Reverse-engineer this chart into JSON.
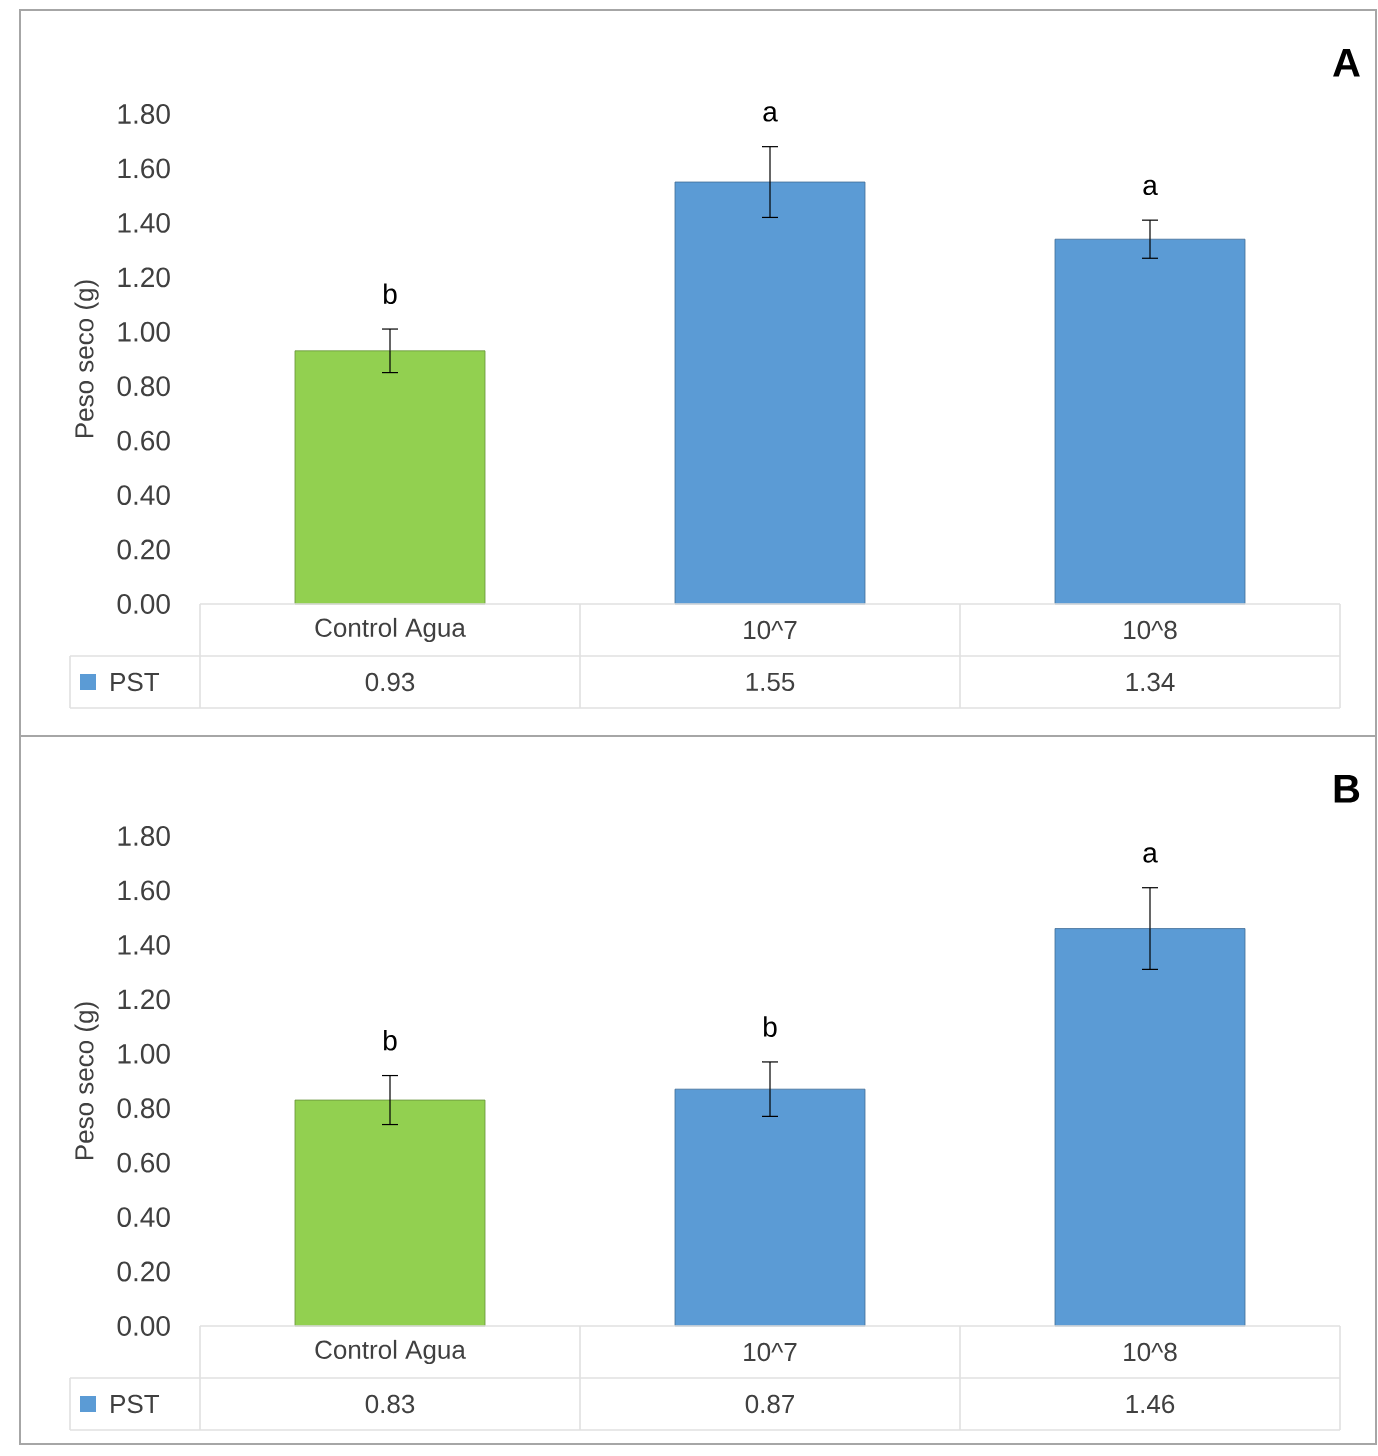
{
  "chart_data": [
    {
      "type": "bar",
      "title": "A",
      "ylabel": "Peso seco (g)",
      "categories": [
        "Control Agua",
        "10^7",
        "10^8"
      ],
      "series": [
        {
          "name": "PST",
          "colors": [
            "#92d050",
            "#5b9bd5",
            "#5b9bd5"
          ],
          "values": [
            0.93,
            1.55,
            1.34
          ],
          "errors": [
            0.08,
            0.13,
            0.07
          ]
        }
      ],
      "ylim": [
        0,
        1.8
      ],
      "yticks": [
        {
          "value": 0,
          "label": "0.00"
        },
        {
          "value": 0.2,
          "label": "0.20"
        },
        {
          "value": 0.4,
          "label": "0.40"
        },
        {
          "value": 0.6,
          "label": "0.60"
        },
        {
          "value": 0.8,
          "label": "0.80"
        },
        {
          "value": 1,
          "label": "1.00"
        },
        {
          "value": 1.2,
          "label": "1.20"
        },
        {
          "value": 1.4,
          "label": "1.40"
        },
        {
          "value": 1.6,
          "label": "1.60"
        },
        {
          "value": 1.8,
          "label": "1.80"
        }
      ],
      "data_labels": true,
      "annotations": [
        "b",
        "a",
        "a"
      ]
    },
    {
      "type": "bar",
      "title": "B",
      "ylabel": "Peso seco (g)",
      "categories": [
        "Control Agua",
        "10^7",
        "10^8"
      ],
      "series": [
        {
          "name": "PST",
          "colors": [
            "#92d050",
            "#5b9bd5",
            "#5b9bd5"
          ],
          "values": [
            0.83,
            0.87,
            1.46
          ],
          "errors": [
            0.09,
            0.1,
            0.15
          ]
        }
      ],
      "ylim": [
        0,
        1.8
      ],
      "yticks": [
        {
          "value": 0,
          "label": "0.00"
        },
        {
          "value": 0.2,
          "label": "0.20"
        },
        {
          "value": 0.4,
          "label": "0.40"
        },
        {
          "value": 0.6,
          "label": "0.60"
        },
        {
          "value": 0.8,
          "label": "0.80"
        },
        {
          "value": 1,
          "label": "1.00"
        },
        {
          "value": 1.2,
          "label": "1.20"
        },
        {
          "value": 1.4,
          "label": "1.40"
        },
        {
          "value": 1.6,
          "label": "1.60"
        },
        {
          "value": 1.8,
          "label": "1.80"
        }
      ],
      "data_labels": true,
      "annotations": [
        "b",
        "b",
        "a"
      ]
    }
  ]
}
